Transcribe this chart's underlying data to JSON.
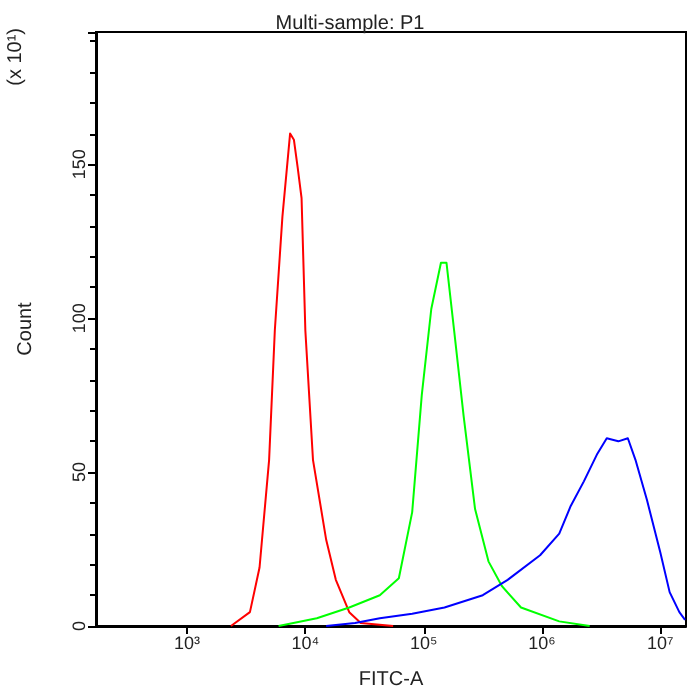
{
  "chart_data": {
    "type": "line",
    "title": "Multi-sample: P1",
    "xlabel": "FITC-A",
    "ylabel": "Count",
    "annotations": [
      "(x 10¹)"
    ],
    "log": "x",
    "xlim": [
      170,
      16500000
    ],
    "xticks": [
      {
        "value": 1000,
        "label": "10³"
      },
      {
        "value": 10000,
        "label": "10⁴"
      },
      {
        "value": 100000,
        "label": "10⁵"
      },
      {
        "value": 1000000,
        "label": "10⁶"
      },
      {
        "value": 10000000,
        "label": "10⁷"
      }
    ],
    "ylim": [
      0,
      193
    ],
    "yticks": [
      0,
      50,
      100,
      150
    ],
    "grid": false,
    "marker": "none",
    "line_style": "solid",
    "series": [
      {
        "color": "#ff0000",
        "x": [
          2350,
          3400,
          4100,
          4940,
          5520,
          6400,
          7430,
          8000,
          8610,
          9290,
          10000,
          11600,
          15000,
          18100,
          23500,
          29400,
          55200
        ],
        "values": [
          0,
          4.5,
          19,
          54,
          96,
          133,
          160,
          158,
          149,
          139,
          96,
          54,
          28,
          15,
          4.5,
          1,
          0
        ]
      },
      {
        "color": "#00ff00",
        "x": [
          5940,
          12500,
          23500,
          42600,
          61700,
          80000,
          96400,
          116000,
          140000,
          156000,
          181000,
          218000,
          272000,
          353000,
          458000,
          665000,
          1400000,
          2530000
        ],
        "values": [
          0,
          2.5,
          6,
          10,
          15.5,
          37,
          75,
          103,
          118,
          118,
          96,
          68,
          38,
          21,
          13,
          6,
          1.5,
          0
        ]
      },
      {
        "color": "#0000ff",
        "x": [
          15000,
          26300,
          42600,
          80000,
          150000,
          316000,
          513000,
          964000,
          1400000,
          1750000,
          2260000,
          2940000,
          3530000,
          4420000,
          5320000,
          6170000,
          7710000,
          10000000,
          12000000,
          14500000,
          16200000
        ],
        "values": [
          0,
          1,
          2.5,
          4,
          6,
          10,
          15,
          23,
          30,
          39,
          47,
          56,
          61,
          60,
          61,
          54,
          41,
          24,
          11,
          4.5,
          2
        ]
      }
    ]
  }
}
